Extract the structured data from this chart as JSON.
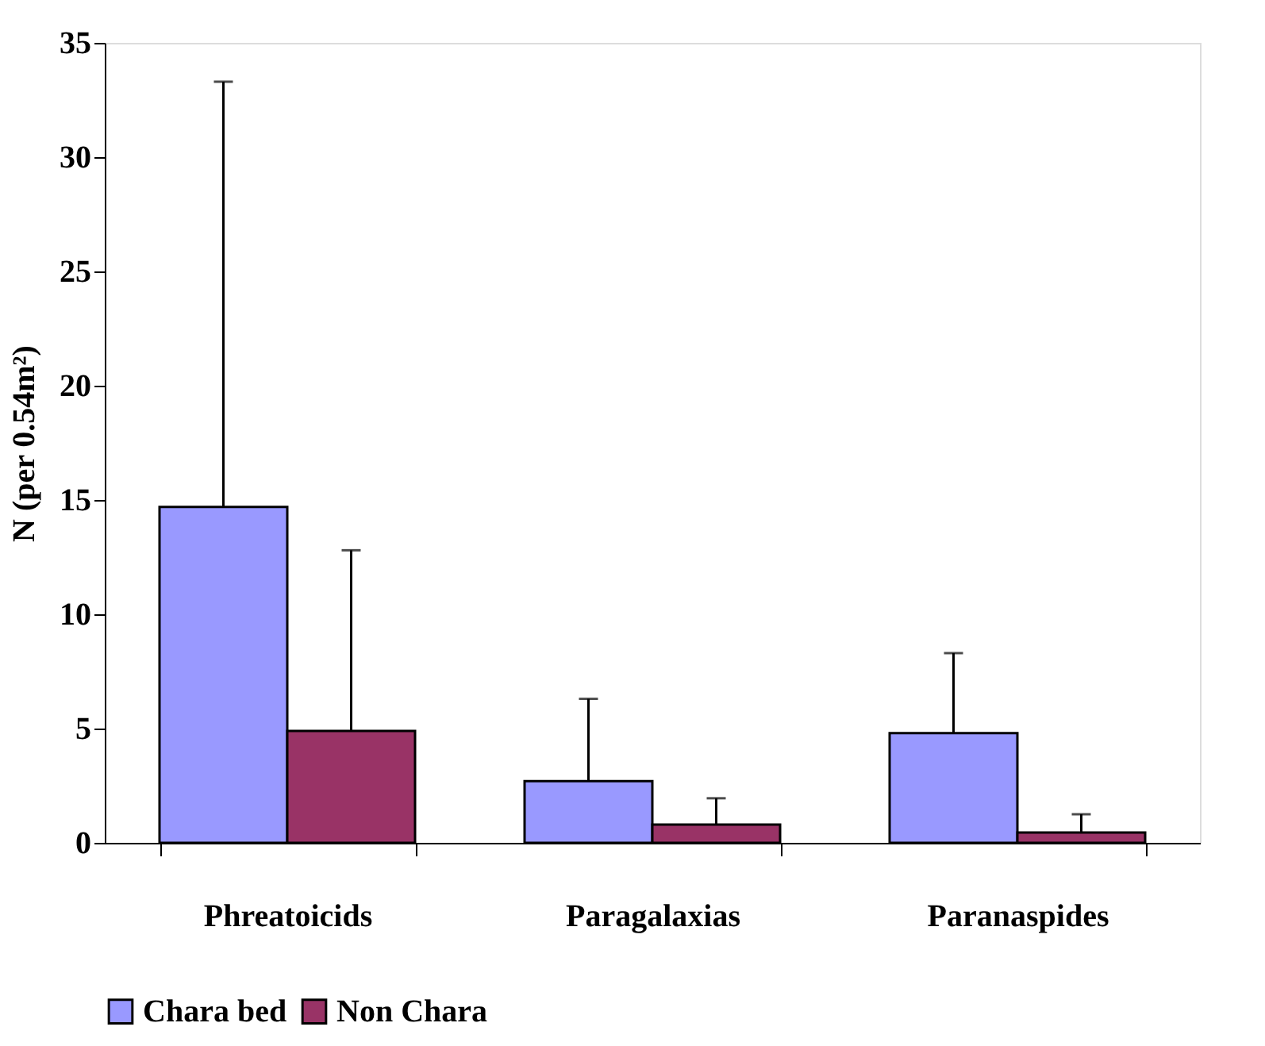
{
  "chart_data": {
    "type": "bar",
    "ylabel": "N (per 0.54m²)",
    "categories": [
      "Phreatoicids",
      "Paragalaxias",
      "Paranaspides"
    ],
    "series": [
      {
        "name": "Chara bed",
        "color": "#9999ff",
        "values": [
          14.7,
          2.7,
          4.8
        ],
        "errors": [
          [
            14.7,
            33.3
          ],
          [
            2.7,
            6.3
          ],
          [
            4.8,
            8.3
          ]
        ]
      },
      {
        "name": "Non Chara",
        "color": "#993366",
        "values": [
          4.9,
          0.8,
          0.45
        ],
        "errors": [
          [
            4.9,
            12.8
          ],
          [
            0.8,
            1.95
          ],
          [
            0.45,
            1.25
          ]
        ]
      }
    ],
    "ylim": [
      0,
      35
    ],
    "yticks": [
      0,
      5,
      10,
      15,
      20,
      25,
      30,
      35
    ],
    "grid": false,
    "legend": "bottom"
  }
}
